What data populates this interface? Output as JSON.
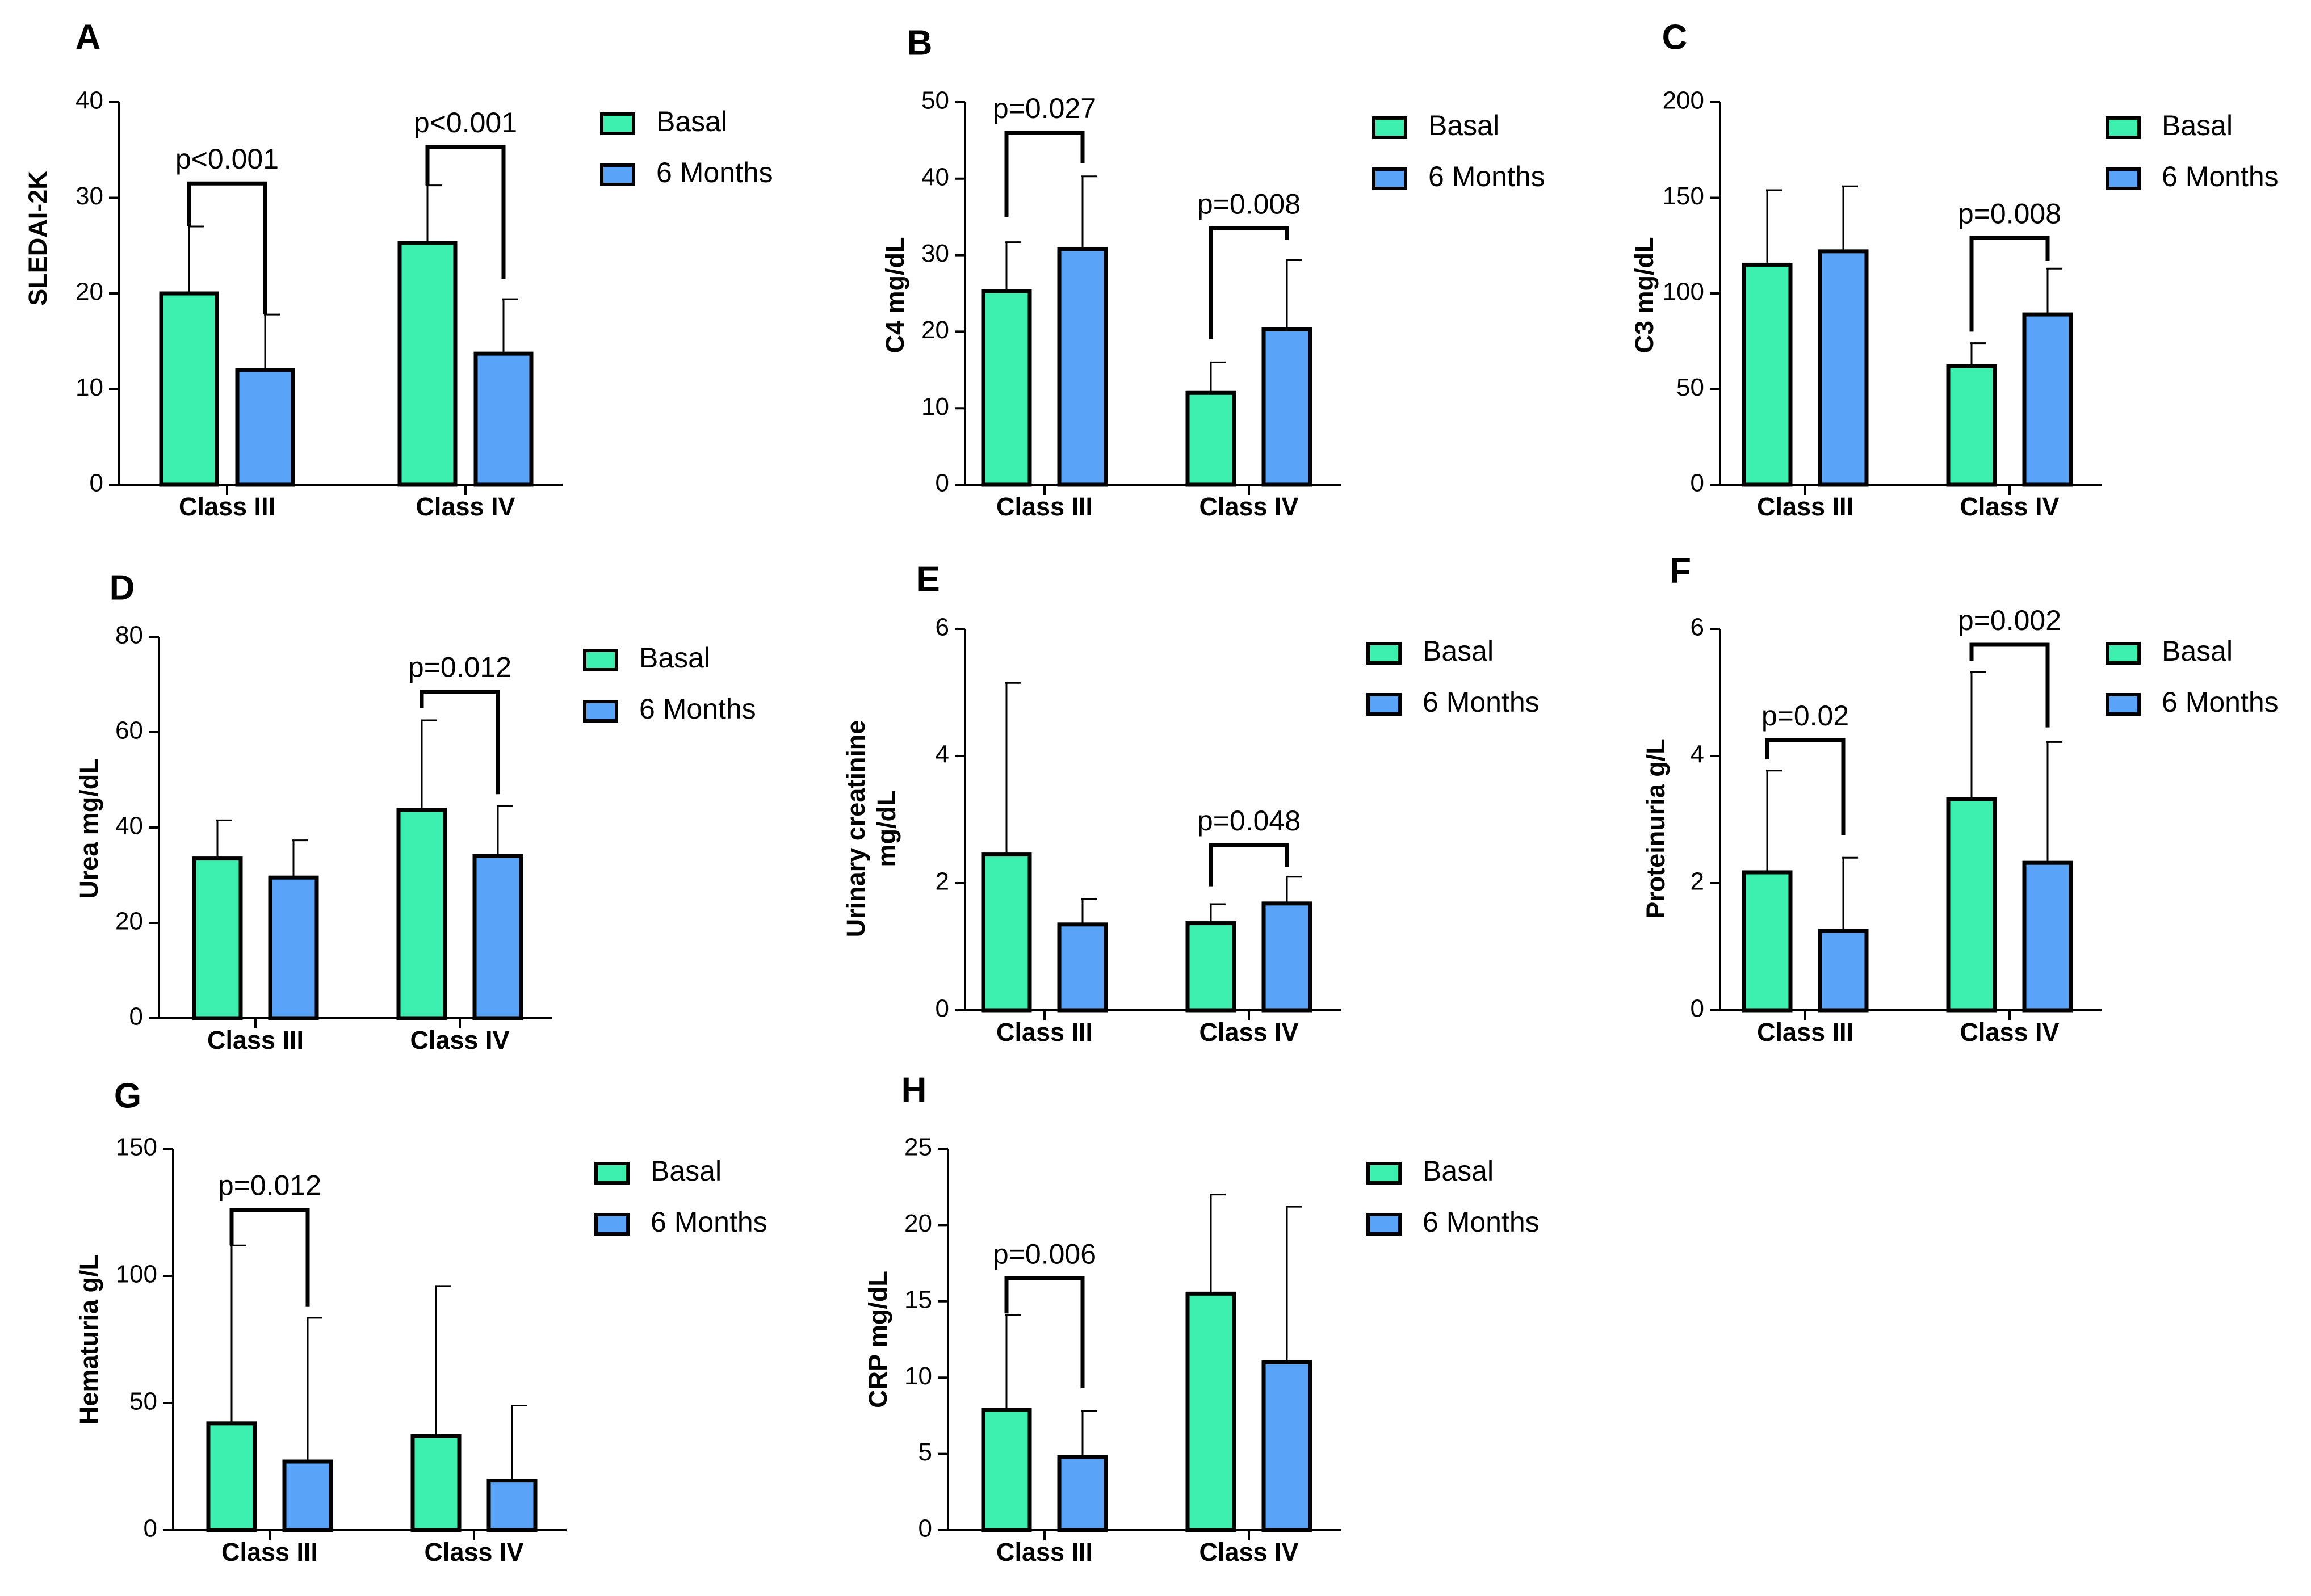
{
  "colors": {
    "basal": "#3ef0b0",
    "months6": "#59a4f8",
    "stroke": "#000000"
  },
  "legend": [
    "Basal",
    "6 Months"
  ],
  "chart_data": [
    {
      "type": "bar",
      "panel": "A",
      "ylabel": "SLEDAI-2K",
      "categories": [
        "Class III",
        "Class IV"
      ],
      "ylim": [
        0,
        40
      ],
      "yticks": [
        0,
        10,
        20,
        30,
        40
      ],
      "series": [
        {
          "name": "Basal",
          "values": [
            20,
            25.3
          ],
          "errors": [
            7,
            6
          ]
        },
        {
          "name": "6 Months",
          "values": [
            12,
            13.7
          ],
          "errors": [
            5.8,
            5.7
          ]
        }
      ],
      "annotations": [
        {
          "category": 0,
          "text": "p<0.001",
          "left_top": 27,
          "right_top": 17.8,
          "bracket": 31.5
        },
        {
          "category": 1,
          "text": "p<0.001",
          "left_top": 31.3,
          "right_top": 21.5,
          "bracket": 35.3
        }
      ]
    },
    {
      "type": "bar",
      "panel": "B",
      "ylabel": "C4 mg/dL",
      "categories": [
        "Class III",
        "Class IV"
      ],
      "ylim": [
        0,
        50
      ],
      "yticks": [
        0,
        10,
        20,
        30,
        40,
        50
      ],
      "series": [
        {
          "name": "Basal",
          "values": [
            25.3,
            12
          ],
          "errors": [
            6.4,
            4
          ]
        },
        {
          "name": "6 Months",
          "values": [
            30.8,
            20.3
          ],
          "errors": [
            9.5,
            9.1
          ]
        }
      ],
      "annotations": [
        {
          "category": 0,
          "text": "p=0.027",
          "left_top": 35,
          "right_top": 42,
          "bracket": 46
        },
        {
          "category": 1,
          "text": "p=0.008",
          "left_top": 19,
          "right_top": 32,
          "bracket": 33.5
        }
      ]
    },
    {
      "type": "bar",
      "panel": "C",
      "ylabel": "C3 mg/dL",
      "categories": [
        "Class III",
        "Class IV"
      ],
      "ylim": [
        0,
        200
      ],
      "yticks": [
        0,
        50,
        100,
        150,
        200
      ],
      "series": [
        {
          "name": "Basal",
          "values": [
            115,
            62
          ],
          "errors": [
            39,
            12
          ]
        },
        {
          "name": "6 Months",
          "values": [
            122,
            89
          ],
          "errors": [
            34,
            24
          ]
        }
      ],
      "annotations": [
        {
          "category": 1,
          "text": "p=0.008",
          "left_top": 80,
          "right_top": 117,
          "bracket": 129
        }
      ]
    },
    {
      "type": "bar",
      "panel": "D",
      "ylabel": "Urea mg/dL",
      "categories": [
        "Class III",
        "Class IV"
      ],
      "ylim": [
        0,
        80
      ],
      "yticks": [
        0,
        20,
        40,
        60,
        80
      ],
      "series": [
        {
          "name": "Basal",
          "values": [
            33.5,
            43.7
          ],
          "errors": [
            8,
            18.8
          ]
        },
        {
          "name": "6 Months",
          "values": [
            29.5,
            34
          ],
          "errors": [
            7.8,
            10.5
          ]
        }
      ],
      "annotations": [
        {
          "category": 1,
          "text": "p=0.012",
          "left_top": 65,
          "right_top": 47,
          "bracket": 68.5
        }
      ]
    },
    {
      "type": "bar",
      "panel": "E",
      "ylabel": "Urinary creatinine mg/dL",
      "categories": [
        "Class III",
        "Class IV"
      ],
      "ylim": [
        0,
        6
      ],
      "yticks": [
        0,
        2,
        4,
        6
      ],
      "series": [
        {
          "name": "Basal",
          "values": [
            2.45,
            1.37
          ],
          "errors": [
            2.7,
            0.3
          ]
        },
        {
          "name": "6 Months",
          "values": [
            1.35,
            1.68
          ],
          "errors": [
            0.4,
            0.42
          ]
        }
      ],
      "annotations": [
        {
          "category": 1,
          "text": "p=0.048",
          "left_top": 1.95,
          "right_top": 2.25,
          "bracket": 2.6
        }
      ]
    },
    {
      "type": "bar",
      "panel": "F",
      "ylabel": "Proteinuria g/L",
      "categories": [
        "Class III",
        "Class IV"
      ],
      "ylim": [
        0,
        6
      ],
      "yticks": [
        0,
        2,
        4,
        6
      ],
      "series": [
        {
          "name": "Basal",
          "values": [
            2.17,
            3.32
          ],
          "errors": [
            1.6,
            2
          ]
        },
        {
          "name": "6 Months",
          "values": [
            1.25,
            2.32
          ],
          "errors": [
            1.15,
            1.9
          ]
        }
      ],
      "annotations": [
        {
          "category": 0,
          "text": "p=0.02",
          "left_top": 3.95,
          "right_top": 2.75,
          "bracket": 4.25
        },
        {
          "category": 1,
          "text": "p=0.002",
          "left_top": 5.5,
          "right_top": 4.45,
          "bracket": 5.75
        }
      ]
    },
    {
      "type": "bar",
      "panel": "G",
      "ylabel": "Hematuria g/L",
      "categories": [
        "Class III",
        "Class IV"
      ],
      "ylim": [
        0,
        150
      ],
      "yticks": [
        0,
        50,
        100,
        150
      ],
      "series": [
        {
          "name": "Basal",
          "values": [
            42,
            37
          ],
          "errors": [
            70,
            59
          ]
        },
        {
          "name": "6 Months",
          "values": [
            27,
            19.5
          ],
          "errors": [
            56.5,
            29.5
          ]
        }
      ],
      "annotations": [
        {
          "category": 0,
          "text": "p=0.012",
          "left_top": 112,
          "right_top": 88,
          "bracket": 126
        }
      ]
    },
    {
      "type": "bar",
      "panel": "H",
      "ylabel": "CRP mg/dL",
      "categories": [
        "Class III",
        "Class IV"
      ],
      "ylim": [
        0,
        25
      ],
      "yticks": [
        0,
        5,
        10,
        15,
        20,
        25
      ],
      "series": [
        {
          "name": "Basal",
          "values": [
            7.9,
            15.5
          ],
          "errors": [
            6.2,
            6.5
          ]
        },
        {
          "name": "6 Months",
          "values": [
            4.8,
            11
          ],
          "errors": [
            3,
            10.2
          ]
        }
      ],
      "annotations": [
        {
          "category": 0,
          "text": "p=0.006",
          "left_top": 14.2,
          "right_top": 9.3,
          "bracket": 16.5
        }
      ]
    }
  ]
}
